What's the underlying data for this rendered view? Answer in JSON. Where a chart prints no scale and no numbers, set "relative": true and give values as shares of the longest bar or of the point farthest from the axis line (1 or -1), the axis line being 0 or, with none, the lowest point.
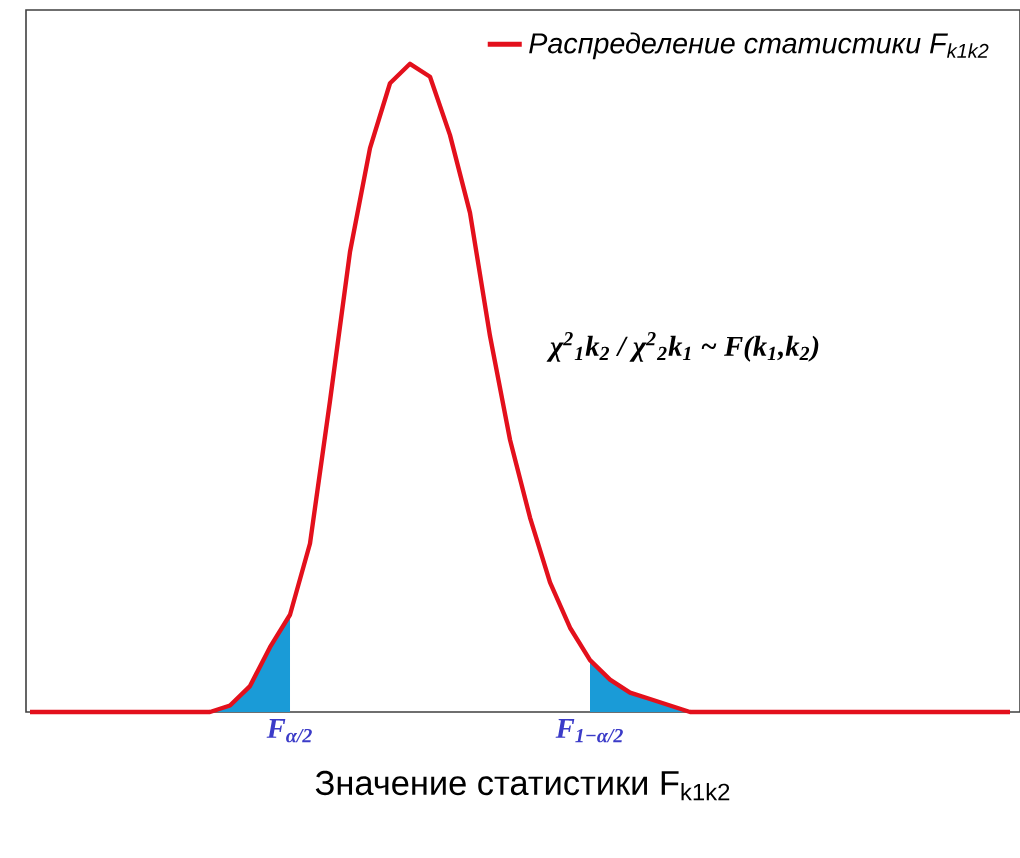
{
  "chart_data": {
    "type": "line",
    "relative": true,
    "xlabel": "Значение статистики F$_{k1k2}$",
    "categories": [
      null,
      null,
      null,
      null,
      null,
      null,
      null,
      null,
      null,
      null,
      null,
      null,
      null,
      null,
      null,
      null,
      null,
      null,
      null,
      null,
      null,
      null,
      null,
      null,
      null,
      null,
      null,
      null,
      null,
      null,
      null,
      null,
      null,
      null,
      null,
      null,
      null,
      null,
      null,
      null,
      null,
      null,
      null,
      null,
      null,
      null,
      null,
      null,
      null,
      null
    ],
    "series": [
      {
        "type": "area",
        "color": "#1a9bd7",
        "values": [
          null,
          null,
          null,
          null,
          null,
          null,
          null,
          null,
          null,
          0,
          0.01,
          0.04,
          0.1,
          0.15,
          null,
          null,
          null,
          null,
          null,
          null,
          null,
          null,
          null,
          null,
          null,
          null,
          null,
          null,
          0.08,
          0.05,
          0.03,
          0.02,
          0.01,
          0,
          null,
          null,
          null,
          null,
          null,
          null,
          null,
          null,
          null,
          null,
          null,
          null,
          null,
          null,
          null,
          null
        ]
      },
      {
        "name": "Распределение статистики F$_{k1k2}$",
        "color": "#e3101c",
        "values": [
          0,
          0,
          0,
          0,
          0,
          0,
          0,
          0,
          0,
          0,
          0.01,
          0.04,
          0.1,
          0.15,
          0.26,
          0.48,
          0.71,
          0.87,
          0.97,
          1.0,
          0.98,
          0.89,
          0.77,
          0.58,
          0.42,
          0.3,
          0.2,
          0.13,
          0.08,
          0.05,
          0.03,
          0.02,
          0.01,
          0,
          0,
          0,
          0,
          0,
          0,
          0,
          0,
          0,
          0,
          0,
          0,
          0,
          0,
          0,
          0,
          0
        ]
      }
    ],
    "annotations": [
      "F$_{α/2}$",
      "F$_{1−α/2}$",
      "χ$^{2}$$_{1}$k$_{2}$ / χ$^{2}$$_{2}$k$_{1}$ ~ F(k$_{1}$,k$_{2}$)"
    ],
    "legend": "top right",
    "marker": "none",
    "line_style": "solid"
  }
}
